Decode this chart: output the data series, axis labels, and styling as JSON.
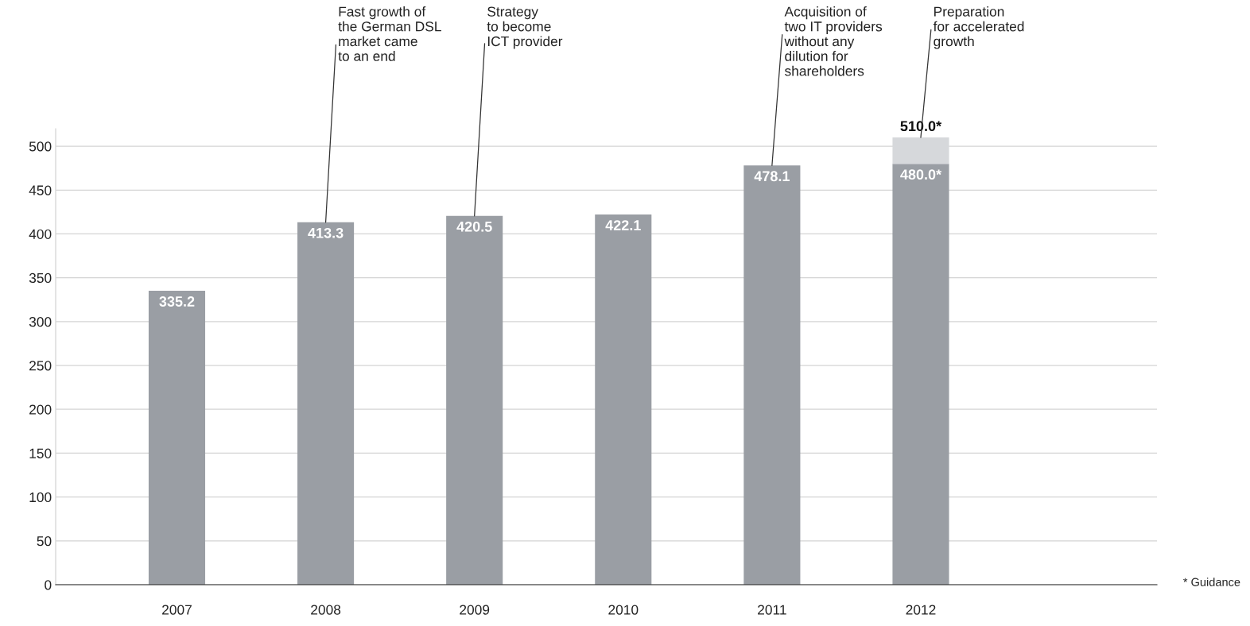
{
  "chart_data": {
    "type": "bar",
    "stacked": true,
    "categories": [
      "2007",
      "2008",
      "2009",
      "2010",
      "2011",
      "2012"
    ],
    "series": [
      {
        "color": "#9a9ea4",
        "values": [
          335.2,
          413.3,
          420.5,
          422.1,
          478.1,
          480.0
        ],
        "value_labels": [
          "335.2",
          "413.3",
          "420.5",
          "422.1",
          "478.1",
          "480.0*"
        ]
      },
      {
        "color": "#d6d8db",
        "values": [
          null,
          null,
          null,
          null,
          null,
          30.0
        ]
      }
    ],
    "totals": [
      null,
      null,
      null,
      null,
      null,
      "510.0*"
    ],
    "ylim": [
      0,
      520
    ],
    "yticks": [
      0,
      50,
      100,
      150,
      200,
      250,
      300,
      350,
      400,
      450,
      500
    ],
    "grid": "y",
    "legend": false,
    "annotations": [
      {
        "text": "Fast growth of\nthe German DSL\nmarket came\nto an end",
        "x": "2008",
        "y": 413.3
      },
      {
        "text": "Strategy\nto become\nICT provider",
        "x": "2009",
        "y": 420.5
      },
      {
        "text": "Acquisition of\ntwo IT providers\nwithout any\ndilution for\nshareholders",
        "x": "2011",
        "y": 478.1
      },
      {
        "text": "Preparation\nfor accelerated\ngrowth",
        "x": "2012",
        "y": 510.0
      },
      "* Guidance"
    ]
  }
}
